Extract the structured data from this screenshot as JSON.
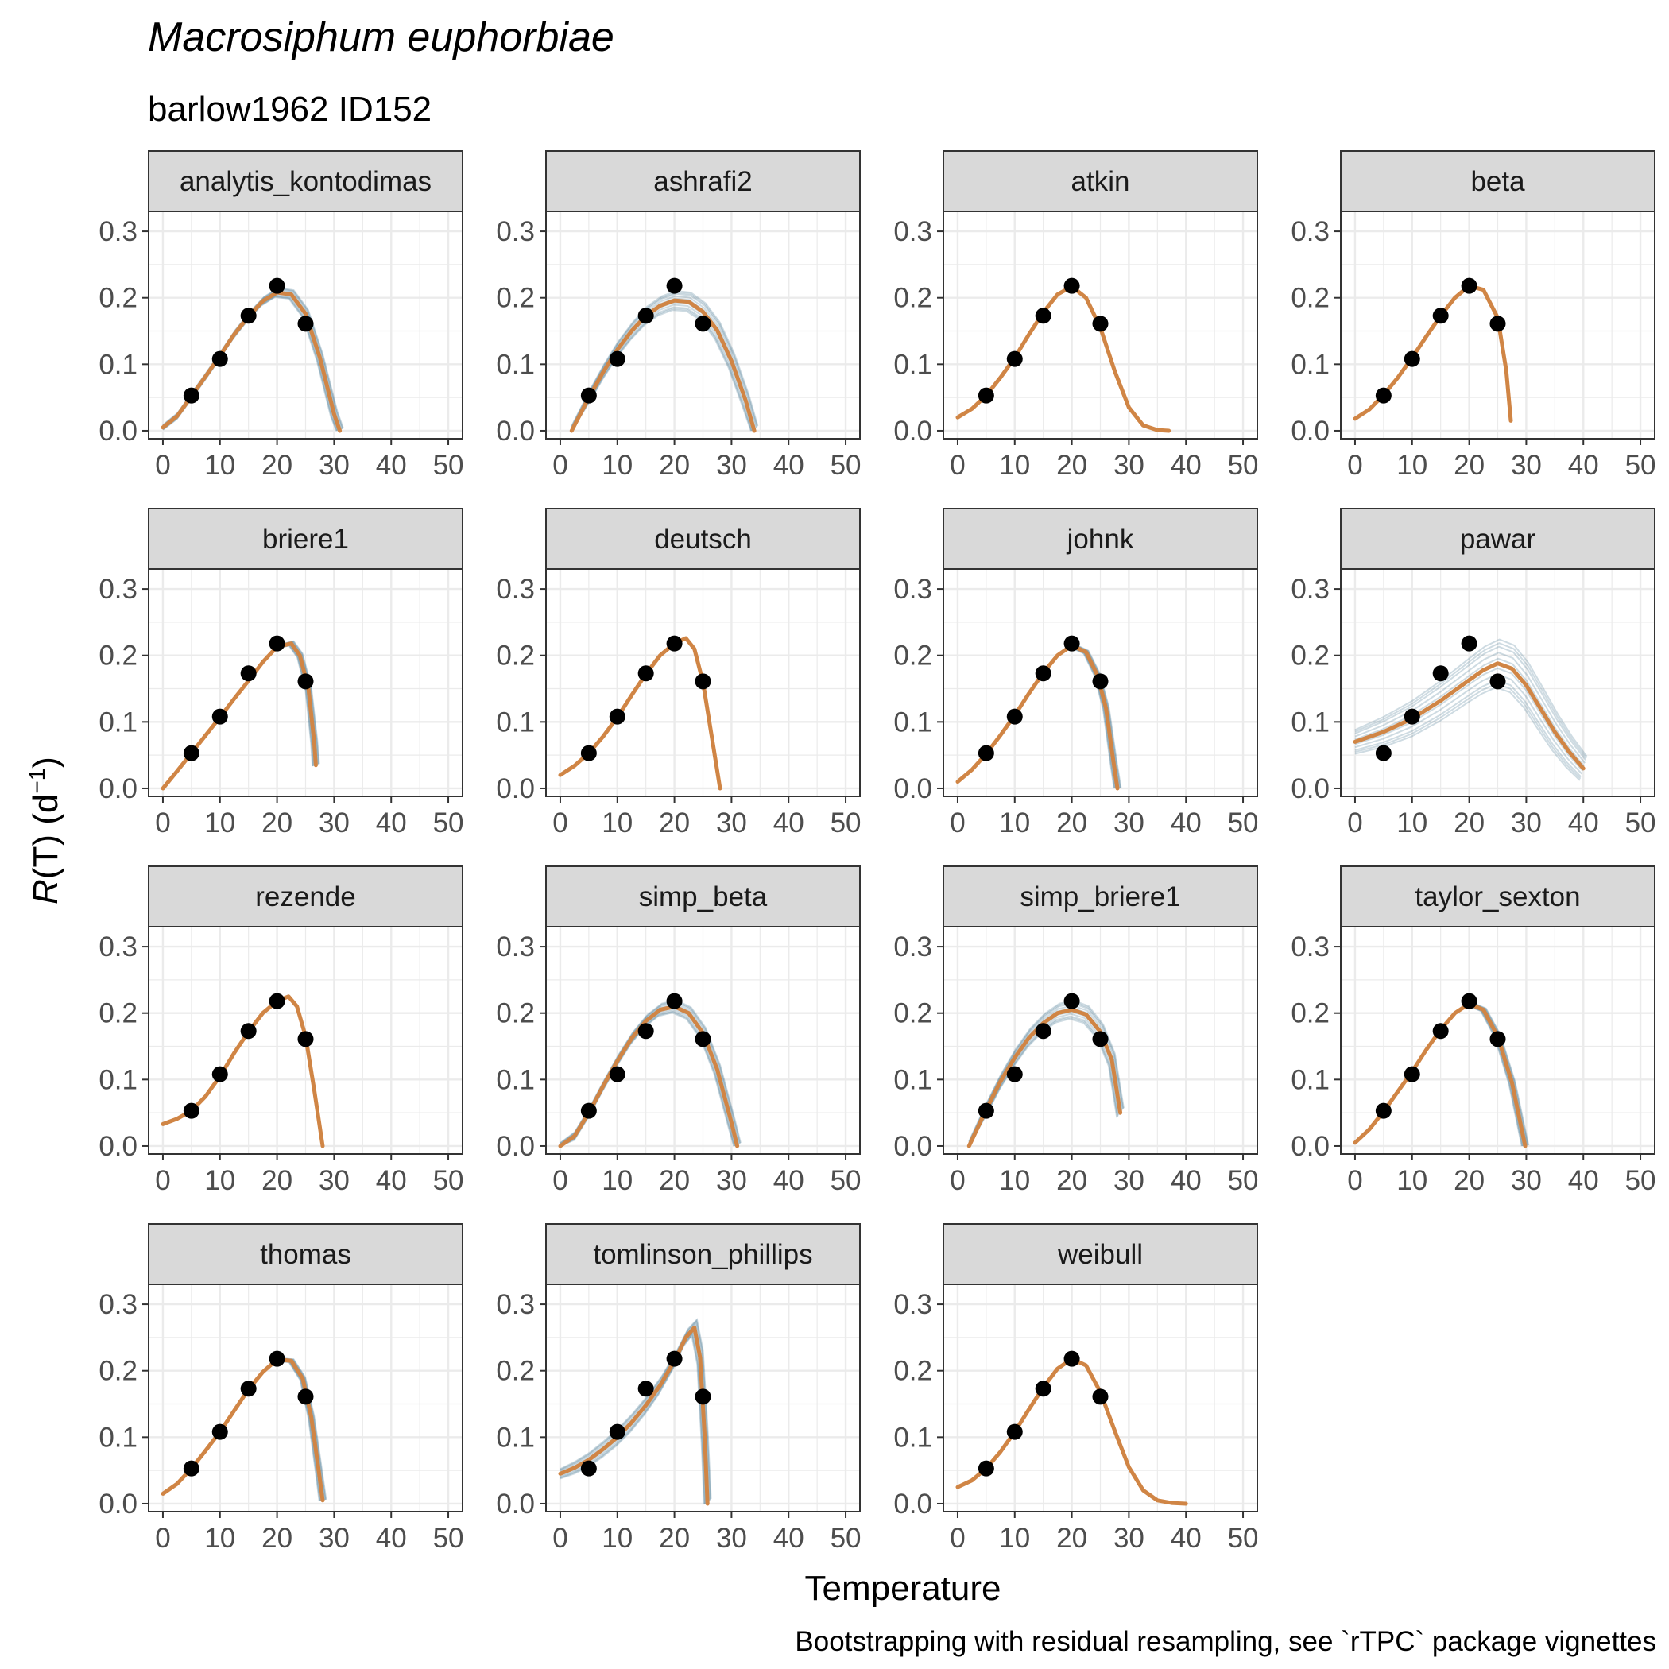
{
  "chart_data": {
    "type": "line",
    "title": "Macrosiphum euphorbiae",
    "subtitle": "barlow1962 ID152",
    "xlabel": "Temperature",
    "ylabel_italic": "R",
    "ylabel_rest": "(T) (d",
    "ylabel_sup": "−1",
    "ylabel_close": ")",
    "caption": "Bootstrapping with residual resampling, see `rTPC` package vignettes",
    "xlim": [
      -2.5,
      52.5
    ],
    "ylim": [
      -0.012,
      0.33
    ],
    "x_ticks": [
      0,
      10,
      20,
      30,
      40,
      50
    ],
    "y_ticks": [
      0.0,
      0.1,
      0.2,
      0.3
    ],
    "y_tick_labels": [
      "0.0",
      "0.1",
      "0.2",
      "0.3"
    ],
    "grid": true,
    "points": {
      "x": [
        5,
        10,
        15,
        20,
        25
      ],
      "y": [
        0.053,
        0.108,
        0.173,
        0.218,
        0.161
      ]
    },
    "colors": {
      "fit": "#d08545",
      "bootstrap": "#1f5c7a",
      "points": "#000000",
      "strip": "#d9d9d9",
      "grid": "#ebebeb"
    },
    "panels": [
      {
        "name": "analytis_kontodimas",
        "x": [
          0,
          2.5,
          5,
          7.5,
          10,
          12.5,
          15,
          17.5,
          20,
          22.5,
          25,
          27.5,
          30,
          31
        ],
        "y": [
          0.005,
          0.022,
          0.052,
          0.082,
          0.113,
          0.145,
          0.172,
          0.195,
          0.208,
          0.205,
          0.176,
          0.11,
          0.025,
          0.0
        ],
        "spread": 0.006
      },
      {
        "name": "ashrafi2",
        "x": [
          2,
          5,
          7.5,
          10,
          12.5,
          15,
          17.5,
          20,
          22.5,
          25,
          27.5,
          30,
          32.5,
          34
        ],
        "y": [
          0.0,
          0.05,
          0.088,
          0.122,
          0.15,
          0.173,
          0.188,
          0.196,
          0.194,
          0.179,
          0.151,
          0.105,
          0.045,
          0.0
        ],
        "spread": 0.012
      },
      {
        "name": "atkin",
        "x": [
          0,
          2.5,
          5,
          7.5,
          10,
          12.5,
          15,
          17.5,
          20,
          22.5,
          25,
          27.5,
          30,
          32.5,
          35,
          37
        ],
        "y": [
          0.02,
          0.033,
          0.053,
          0.08,
          0.11,
          0.145,
          0.178,
          0.205,
          0.217,
          0.2,
          0.155,
          0.09,
          0.035,
          0.008,
          0.001,
          0.0
        ],
        "spread": 0
      },
      {
        "name": "beta",
        "x": [
          0,
          2.5,
          5,
          7.5,
          10,
          12.5,
          15,
          17.5,
          20,
          22.5,
          25,
          26.5,
          27.3
        ],
        "y": [
          0.018,
          0.032,
          0.054,
          0.08,
          0.11,
          0.142,
          0.173,
          0.2,
          0.218,
          0.212,
          0.17,
          0.09,
          0.015
        ],
        "spread": 0
      },
      {
        "name": "briere1",
        "x": [
          0,
          2.5,
          5,
          7.5,
          10,
          12.5,
          15,
          17.5,
          20,
          22.5,
          24,
          25.5,
          26.5,
          26.8
        ],
        "y": [
          0.0,
          0.026,
          0.053,
          0.08,
          0.107,
          0.135,
          0.162,
          0.19,
          0.213,
          0.218,
          0.2,
          0.15,
          0.07,
          0.035
        ],
        "spread": 0.003
      },
      {
        "name": "deutsch",
        "x": [
          0,
          2.5,
          5,
          7.5,
          10,
          12.5,
          15,
          17.5,
          20,
          22,
          23.5,
          25,
          26.5,
          28
        ],
        "y": [
          0.02,
          0.034,
          0.053,
          0.078,
          0.107,
          0.14,
          0.172,
          0.2,
          0.218,
          0.226,
          0.21,
          0.16,
          0.08,
          0.0
        ],
        "spread": 0
      },
      {
        "name": "johnk",
        "x": [
          0,
          2.5,
          5,
          7.5,
          10,
          12.5,
          15,
          17.5,
          20,
          22.5,
          24.5,
          26,
          27.3,
          28
        ],
        "y": [
          0.01,
          0.028,
          0.052,
          0.08,
          0.11,
          0.143,
          0.174,
          0.2,
          0.215,
          0.205,
          0.17,
          0.12,
          0.04,
          0.0
        ],
        "spread": 0.002
      },
      {
        "name": "pawar",
        "x": [
          0,
          5,
          10,
          15,
          20,
          22.5,
          25,
          27.5,
          30,
          32.5,
          35,
          37.5,
          40
        ],
        "y": [
          0.07,
          0.085,
          0.105,
          0.132,
          0.163,
          0.178,
          0.188,
          0.18,
          0.155,
          0.12,
          0.085,
          0.055,
          0.03
        ],
        "spread": 0.03
      },
      {
        "name": "rezende",
        "x": [
          0,
          2.5,
          5,
          7.5,
          10,
          12.5,
          15,
          17.5,
          20,
          22,
          23.5,
          25,
          26.5,
          28
        ],
        "y": [
          0.033,
          0.041,
          0.053,
          0.075,
          0.105,
          0.14,
          0.172,
          0.2,
          0.218,
          0.225,
          0.21,
          0.165,
          0.085,
          0.0
        ],
        "spread": 0
      },
      {
        "name": "simp_beta",
        "x": [
          0,
          2.5,
          5,
          7.5,
          10,
          12.5,
          15,
          17.5,
          20,
          22.5,
          25,
          27.5,
          30,
          31
        ],
        "y": [
          0.0,
          0.015,
          0.05,
          0.09,
          0.128,
          0.162,
          0.188,
          0.205,
          0.21,
          0.2,
          0.17,
          0.115,
          0.035,
          0.0
        ],
        "spread": 0.008
      },
      {
        "name": "simp_briere1",
        "x": [
          2,
          5,
          7.5,
          10,
          12.5,
          15,
          17.5,
          20,
          22.5,
          25,
          27,
          28.5
        ],
        "y": [
          0.0,
          0.055,
          0.097,
          0.133,
          0.163,
          0.185,
          0.2,
          0.205,
          0.198,
          0.172,
          0.13,
          0.05
        ],
        "spread": 0.012
      },
      {
        "name": "taylor_sexton",
        "x": [
          0,
          2.5,
          5,
          7.5,
          10,
          12.5,
          15,
          17.5,
          20,
          22.5,
          25,
          27.5,
          29.8
        ],
        "y": [
          0.005,
          0.025,
          0.052,
          0.082,
          0.112,
          0.145,
          0.175,
          0.2,
          0.214,
          0.205,
          0.165,
          0.095,
          0.0
        ],
        "spread": 0.002
      },
      {
        "name": "thomas",
        "x": [
          0,
          2.5,
          5,
          7.5,
          10,
          12.5,
          15,
          17.5,
          20,
          22.5,
          24.5,
          26,
          27.3,
          28
        ],
        "y": [
          0.015,
          0.03,
          0.053,
          0.08,
          0.108,
          0.14,
          0.172,
          0.198,
          0.217,
          0.215,
          0.188,
          0.13,
          0.05,
          0.005
        ],
        "spread": 0.002
      },
      {
        "name": "tomlinson_phillips",
        "x": [
          0,
          2.5,
          5,
          7.5,
          10,
          12.5,
          15,
          17.5,
          20,
          22,
          23.5,
          24.5,
          25.3,
          25.8
        ],
        "y": [
          0.045,
          0.054,
          0.066,
          0.082,
          0.1,
          0.122,
          0.148,
          0.178,
          0.215,
          0.25,
          0.265,
          0.22,
          0.1,
          0.0
        ],
        "spread": 0.012
      },
      {
        "name": "weibull",
        "x": [
          0,
          2.5,
          5,
          7.5,
          10,
          12.5,
          15,
          17.5,
          20,
          22.5,
          25,
          27.5,
          30,
          32.5,
          35,
          37.5,
          40
        ],
        "y": [
          0.025,
          0.035,
          0.053,
          0.078,
          0.108,
          0.142,
          0.175,
          0.203,
          0.218,
          0.208,
          0.168,
          0.11,
          0.055,
          0.02,
          0.005,
          0.001,
          0.0
        ],
        "spread": 0
      }
    ]
  }
}
